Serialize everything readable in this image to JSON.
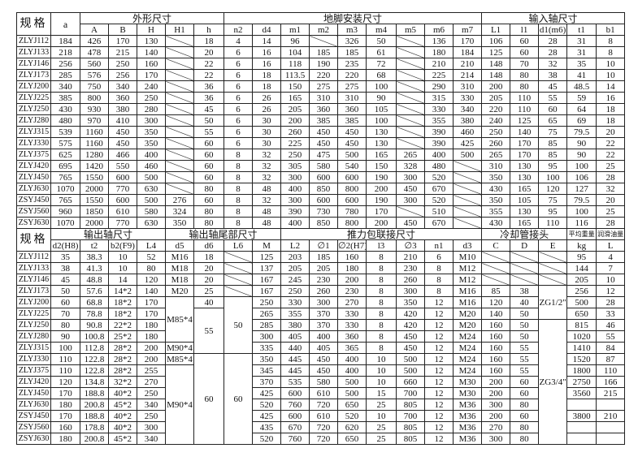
{
  "table1": {
    "spec_label": "规格",
    "a_label": "a",
    "groups": [
      {
        "label": "外形尺寸",
        "span": 5
      },
      {
        "label": "地脚安装尺寸",
        "span": 9
      },
      {
        "label": "输入轴尺寸",
        "span": 5
      }
    ],
    "columns": [
      "A",
      "B",
      "H",
      "H1",
      "h",
      "n2",
      "d4",
      "m1",
      "m2",
      "m3",
      "m4",
      "m5",
      "m6",
      "m7",
      "L1",
      "l1",
      "d1(m6)",
      "t1",
      "b1"
    ],
    "rows": [
      [
        "ZLYJ112",
        "184",
        "426",
        "170",
        "130",
        "/",
        "18",
        "4",
        "14",
        "96",
        "/",
        "326",
        "50",
        "/",
        "136",
        "170",
        "106",
        "60",
        "28",
        "31",
        "8"
      ],
      [
        "ZLYJ133",
        "218",
        "478",
        "215",
        "140",
        "/",
        "20",
        "6",
        "16",
        "104",
        "185",
        "185",
        "61",
        "/",
        "180",
        "184",
        "125",
        "60",
        "28",
        "31",
        "8"
      ],
      [
        "ZLYJ146",
        "256",
        "560",
        "250",
        "160",
        "/",
        "22",
        "6",
        "16",
        "118",
        "190",
        "235",
        "72",
        "/",
        "210",
        "210",
        "148",
        "70",
        "32",
        "35",
        "10"
      ],
      [
        "ZLYJ173",
        "285",
        "576",
        "256",
        "170",
        "/",
        "22",
        "6",
        "18",
        "113.5",
        "220",
        "220",
        "68",
        "/",
        "225",
        "214",
        "148",
        "80",
        "38",
        "41",
        "10"
      ],
      [
        "ZLYJ200",
        "340",
        "750",
        "340",
        "240",
        "/",
        "36",
        "6",
        "18",
        "150",
        "275",
        "275",
        "100",
        "/",
        "290",
        "310",
        "200",
        "80",
        "45",
        "48.5",
        "14"
      ],
      [
        "ZLYJ225",
        "385",
        "800",
        "360",
        "250",
        "/",
        "36",
        "6",
        "26",
        "165",
        "310",
        "310",
        "90",
        "/",
        "315",
        "330",
        "205",
        "110",
        "55",
        "59",
        "16"
      ],
      [
        "ZLYJ250",
        "430",
        "930",
        "380",
        "280",
        "/",
        "45",
        "6",
        "26",
        "205",
        "360",
        "360",
        "105",
        "/",
        "330",
        "340",
        "220",
        "110",
        "60",
        "64",
        "18"
      ],
      [
        "ZLYJ280",
        "480",
        "970",
        "410",
        "300",
        "/",
        "50",
        "6",
        "30",
        "200",
        "385",
        "385",
        "100",
        "/",
        "355",
        "380",
        "240",
        "125",
        "65",
        "69",
        "18"
      ],
      [
        "ZLYJ315",
        "539",
        "1160",
        "450",
        "350",
        "/",
        "55",
        "6",
        "30",
        "260",
        "450",
        "450",
        "130",
        "/",
        "390",
        "460",
        "250",
        "140",
        "75",
        "79.5",
        "20"
      ],
      [
        "ZLYJ330",
        "575",
        "1160",
        "450",
        "350",
        "/",
        "60",
        "6",
        "30",
        "225",
        "450",
        "450",
        "130",
        "/",
        "390",
        "425",
        "260",
        "170",
        "85",
        "90",
        "22"
      ],
      [
        "ZLYJ375",
        "625",
        "1280",
        "466",
        "400",
        "/",
        "60",
        "8",
        "32",
        "250",
        "475",
        "500",
        "165",
        "265",
        "400",
        "500",
        "265",
        "170",
        "85",
        "90",
        "22"
      ],
      [
        "ZLYJ420",
        "695",
        "1420",
        "550",
        "460",
        "/",
        "60",
        "8",
        "32",
        "305",
        "580",
        "540",
        "150",
        "328",
        "480",
        "/",
        "310",
        "130",
        "95",
        "100",
        "25"
      ],
      [
        "ZLYJ450",
        "765",
        "1550",
        "600",
        "500",
        "/",
        "60",
        "8",
        "32",
        "300",
        "600",
        "600",
        "190",
        "300",
        "520",
        "/",
        "350",
        "130",
        "100",
        "106",
        "28"
      ],
      [
        "ZLYJ630",
        "1070",
        "2000",
        "770",
        "630",
        "/",
        "80",
        "8",
        "48",
        "400",
        "850",
        "800",
        "200",
        "450",
        "670",
        "/",
        "430",
        "165",
        "120",
        "127",
        "32"
      ],
      [
        "ZSYJ450",
        "765",
        "1550",
        "600",
        "500",
        "276",
        "60",
        "8",
        "32",
        "300",
        "600",
        "600",
        "190",
        "300",
        "520",
        "/",
        "350",
        "105",
        "75",
        "79.5",
        "20"
      ],
      [
        "ZSYJ560",
        "960",
        "1850",
        "610",
        "580",
        "324",
        "80",
        "8",
        "48",
        "390",
        "730",
        "780",
        "170",
        "/",
        "510",
        "/",
        "355",
        "130",
        "95",
        "100",
        "25"
      ],
      [
        "ZSYJ630",
        "1070",
        "2000",
        "770",
        "630",
        "350",
        "80",
        "8",
        "48",
        "400",
        "850",
        "800",
        "200",
        "450",
        "670",
        "/",
        "430",
        "165",
        "110",
        "116",
        "28"
      ]
    ]
  },
  "table2": {
    "spec_label": "规格",
    "groups": [
      {
        "label": "输出轴尺寸",
        "span": 4
      },
      {
        "label": "输出轴尾部尺寸",
        "span": 4
      },
      {
        "label": "推力包联接尺寸",
        "span": 7
      },
      {
        "label": "冷却管接头",
        "span": 3
      },
      {
        "label": "平均重量",
        "span": 1
      },
      {
        "label": "润滑油量",
        "span": 1
      }
    ],
    "columns": [
      "d2(H8)",
      "t2",
      "b2(F9)",
      "L4",
      "d5",
      "d6",
      "L6",
      "M",
      "L2",
      "∅1",
      "∅2(H7)",
      "l3",
      "∅3",
      "n1",
      "d3",
      "C",
      "D",
      "E",
      "kg",
      "L"
    ],
    "rows": [
      [
        "ZLYJ112",
        "35",
        "38.3",
        "10",
        "52",
        "M16",
        "18",
        "/",
        "125",
        "203",
        "185",
        "160",
        "8",
        "210",
        "6",
        "M10",
        "/",
        "/",
        "/",
        "95",
        "4"
      ],
      [
        "ZLYJ133",
        "38",
        "41.3",
        "10",
        "80",
        "M18",
        "20",
        "/",
        "137",
        "205",
        "205",
        "180",
        "8",
        "230",
        "8",
        "M12",
        "/",
        "/",
        "/",
        "144",
        "7"
      ],
      [
        "ZLYJ146",
        "45",
        "48.8",
        "14",
        "120",
        "M18",
        "20",
        "/",
        "167",
        "245",
        "230",
        "200",
        "8",
        "260",
        "8",
        "M12",
        "/",
        "/",
        "/",
        "205",
        "10"
      ],
      [
        "ZLYJ173",
        "50",
        "57.6",
        "14*2",
        "140",
        "M20",
        "25",
        "/",
        "167",
        "250",
        "260",
        "230",
        "8",
        "300",
        "8",
        "M16",
        "85",
        "38",
        "ZG1/2\"",
        "256",
        "12"
      ],
      [
        "ZLYJ200",
        "60",
        "68.8",
        "18*2",
        "170",
        "M85*4",
        "40",
        "50",
        "250",
        "330",
        "300",
        "270",
        "8",
        "350",
        "12",
        "M16",
        "120",
        "40",
        null,
        "500",
        "28"
      ],
      [
        "ZLYJ225",
        "70",
        "78.8",
        "18*2",
        "170",
        null,
        "55",
        null,
        "265",
        "355",
        "370",
        "330",
        "8",
        "420",
        "12",
        "M20",
        "140",
        "50",
        null,
        "650",
        "33"
      ],
      [
        "ZLYJ250",
        "80",
        "90.8",
        "22*2",
        "180",
        null,
        null,
        null,
        "285",
        "380",
        "370",
        "330",
        "8",
        "420",
        "12",
        "M20",
        "160",
        "50",
        "ZG3/4\"",
        "815",
        "46"
      ],
      [
        "ZLYJ280",
        "90",
        "100.8",
        "25*2",
        "180",
        null,
        null,
        null,
        "300",
        "405",
        "400",
        "360",
        "8",
        "450",
        "12",
        "M24",
        "160",
        "50",
        null,
        "1020",
        "55"
      ],
      [
        "ZLYJ315",
        "100",
        "112.8",
        "28*2",
        "200",
        "M90*4",
        null,
        null,
        "335",
        "440",
        "405",
        "365",
        "8",
        "450",
        "12",
        "M24",
        "160",
        "55",
        null,
        "1410",
        "84"
      ],
      [
        "ZLYJ330",
        "110",
        "122.8",
        "28*2",
        "200",
        "M85*4",
        "60",
        "60",
        "350",
        "445",
        "450",
        "400",
        "10",
        "500",
        "12",
        "M24",
        "160",
        "55",
        null,
        "1520",
        "87"
      ],
      [
        "ZLYJ375",
        "110",
        "122.8",
        "28*2",
        "255",
        "M90*4",
        null,
        null,
        "345",
        "445",
        "450",
        "400",
        "10",
        "500",
        "12",
        "M24",
        "160",
        "55",
        null,
        "1800",
        "110"
      ],
      [
        "ZLYJ420",
        "120",
        "134.8",
        "32*2",
        "270",
        null,
        null,
        null,
        "370",
        "535",
        "580",
        "500",
        "10",
        "660",
        "12",
        "M30",
        "200",
        "60",
        null,
        "2750",
        "166"
      ],
      [
        "ZLYJ450",
        "170",
        "188.8",
        "40*2",
        "250",
        null,
        null,
        null,
        "425",
        "600",
        "610",
        "500",
        "15",
        "700",
        "12",
        "M30",
        "200",
        "60",
        null,
        "3560",
        "215"
      ],
      [
        "ZLYJ630",
        "180",
        "200.8",
        "45*2",
        "340",
        null,
        null,
        null,
        "520",
        "760",
        "720",
        "650",
        "25",
        "805",
        "12",
        "M36",
        "300",
        "80",
        null,
        "",
        ""
      ],
      [
        "ZSYJ450",
        "170",
        "188.8",
        "40*2",
        "250",
        null,
        null,
        null,
        "425",
        "600",
        "610",
        "520",
        "10",
        "700",
        "12",
        "M36",
        "200",
        "60",
        null,
        "3800",
        "210"
      ],
      [
        "ZSYJ560",
        "160",
        "178.8",
        "40*2",
        "300",
        null,
        null,
        null,
        "435",
        "670",
        "720",
        "620",
        "25",
        "805",
        "12",
        "M36",
        "270",
        "80",
        null,
        "",
        ""
      ],
      [
        "ZSYJ630",
        "180",
        "200.8",
        "45*2",
        "340",
        null,
        null,
        null,
        "520",
        "760",
        "720",
        "650",
        "25",
        "805",
        "12",
        "M36",
        "300",
        "80",
        null,
        "",
        ""
      ]
    ]
  }
}
